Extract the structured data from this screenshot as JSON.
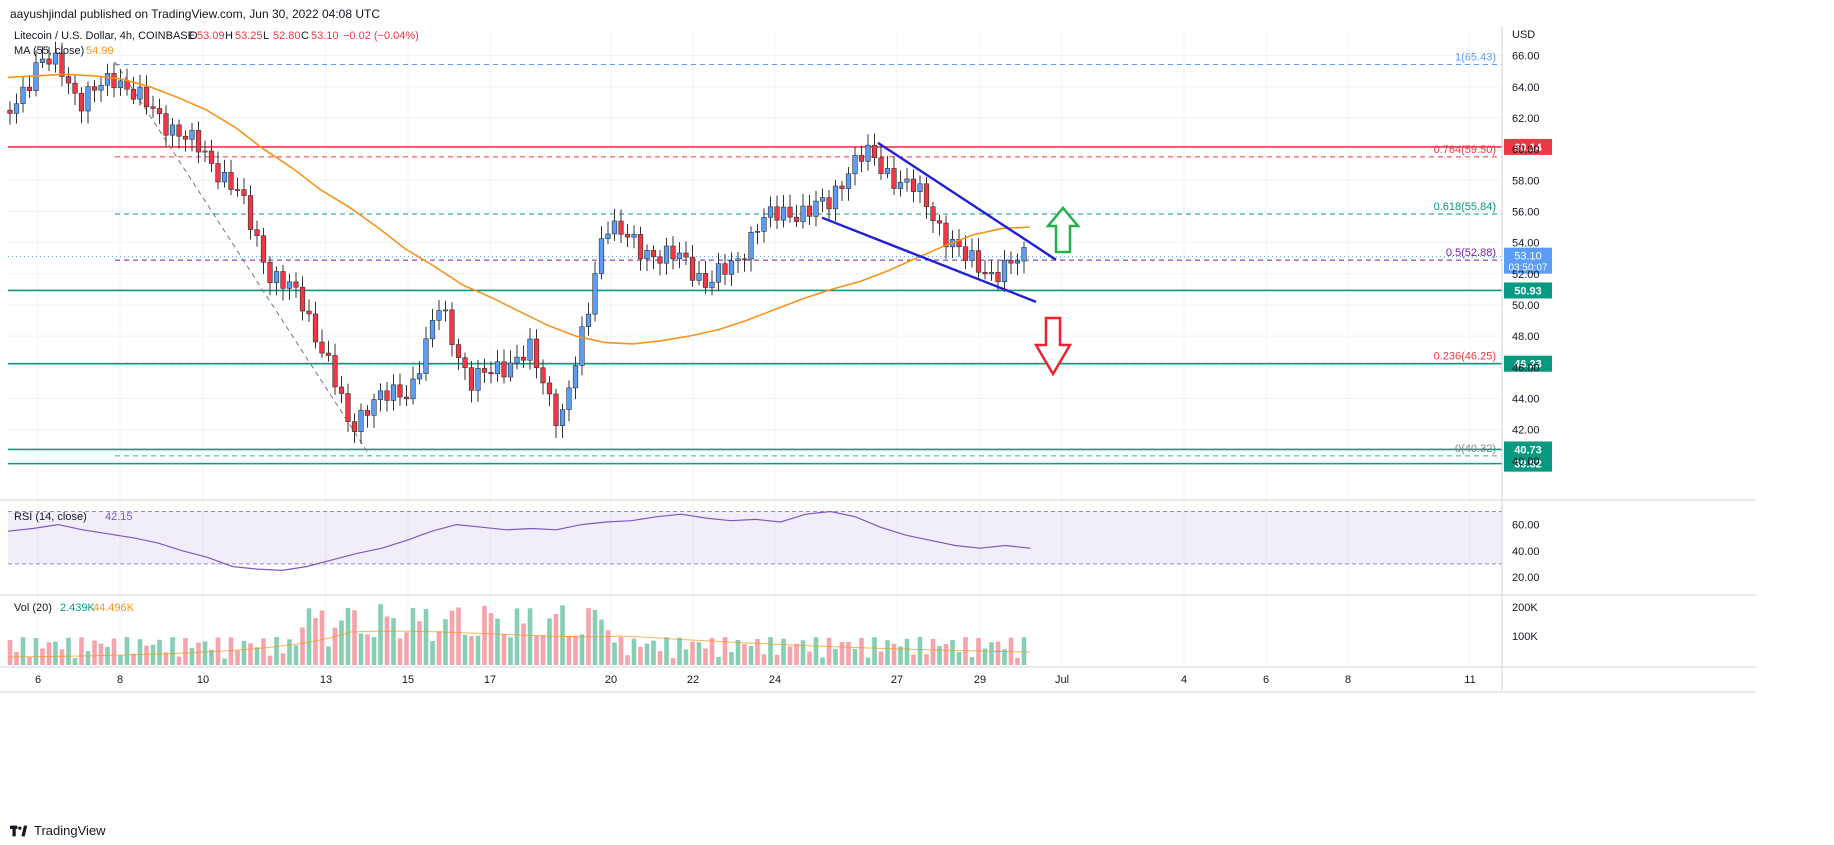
{
  "header": {
    "published": "aayushjindal published on TradingView.com, Jun 30, 2022 04:08 UTC"
  },
  "legend": {
    "symbol": "Litecoin / U.S. Dollar, 4h, COINBASE",
    "o_label": "O",
    "o": "53.09",
    "h_label": "H",
    "h": "53.25",
    "l_label": "L",
    "l": "52.80",
    "c_label": "C",
    "c": "53.10",
    "change": "−0.02 (−0.04%)",
    "ma_label": "MA (55, close)",
    "ma_value": "54.99"
  },
  "currency": "USD",
  "footer": {
    "brand": "TradingView"
  },
  "colors": {
    "up": "#5b9cf6",
    "down": "#f23645",
    "ma": "#f7931a",
    "trend": "#1f1fd6",
    "green": "#089981",
    "red": "#f23645",
    "rsi": "#7e57c2"
  },
  "chart_data": {
    "type": "candlestick",
    "price_axis": {
      "min": 38.0,
      "max": 67.0,
      "ticks": [
        "66.00",
        "64.00",
        "62.00",
        "60.00",
        "58.00",
        "56.00",
        "54.00",
        "52.00",
        "50.00",
        "48.00",
        "46.00",
        "44.00",
        "42.00",
        "40.00"
      ]
    },
    "time_axis": {
      "labels": [
        "6",
        "8",
        "10",
        "13",
        "15",
        "17",
        "20",
        "22",
        "24",
        "27",
        "29",
        "Jul",
        "4",
        "6",
        "8",
        "11"
      ]
    },
    "current_price": {
      "value": "53.10",
      "countdown": "03:50:07"
    },
    "horizontal_levels": [
      {
        "value": 60.14,
        "label": "60.14",
        "color": "#f23645"
      },
      {
        "value": 50.93,
        "label": "50.93",
        "color": "#089981"
      },
      {
        "value": 46.23,
        "label": "46.23",
        "color": "#089981"
      },
      {
        "value": 40.73,
        "label": "40.73",
        "color": "#089981"
      },
      {
        "value": 39.82,
        "label": "39.82",
        "color": "#089981"
      }
    ],
    "fibonacci": [
      {
        "value": 65.43,
        "label": "1(65.43)",
        "color": "#5b9cf6"
      },
      {
        "value": 59.5,
        "label": "0.764(59.50)",
        "color": "#f23645"
      },
      {
        "value": 55.84,
        "label": "0.618(55.84)",
        "color": "#089981"
      },
      {
        "value": 52.88,
        "label": "0.5(52.88)",
        "color": "#7b1fa2"
      },
      {
        "value": 46.25,
        "label": "0.236(46.25)",
        "color": "#f23645"
      },
      {
        "value": 40.32,
        "label": "0(40.32)",
        "color": "#888888"
      }
    ],
    "ma_close": [
      64.6,
      64.7,
      64.8,
      64.7,
      64.5,
      64.0,
      63.3,
      62.5,
      61.4,
      60.0,
      58.8,
      57.4,
      56.3,
      55.0,
      53.6,
      52.5,
      51.3,
      50.5,
      49.6,
      48.7,
      48.0,
      47.6,
      47.5,
      47.7,
      48.0,
      48.4,
      49.0,
      49.7,
      50.4,
      51.0,
      51.5,
      52.2,
      53.0,
      53.8,
      54.5,
      54.9,
      55.0
    ],
    "rsi": {
      "label": "RSI (14, close)",
      "value": "42.15",
      "ticks": [
        "60.00",
        "40.00",
        "20.00"
      ],
      "values": [
        55,
        57,
        60,
        56,
        53,
        50,
        46,
        40,
        35,
        28,
        26,
        25,
        28,
        33,
        38,
        42,
        48,
        55,
        60,
        58,
        56,
        57,
        56,
        60,
        62,
        63,
        66,
        68,
        65,
        63,
        64,
        62,
        68,
        70,
        66,
        58,
        52,
        48,
        44,
        42,
        44,
        42
      ]
    },
    "volume": {
      "label": "Vol (20)",
      "value": "2.439K",
      "ma_value": "44.496K",
      "ticks": [
        "200K",
        "100K"
      ]
    },
    "annotations": [
      "green up arrow near 55.8",
      "red down arrow near 48.5",
      "descending channel (falling wedge) from Jun 26 to Jun 30"
    ]
  }
}
